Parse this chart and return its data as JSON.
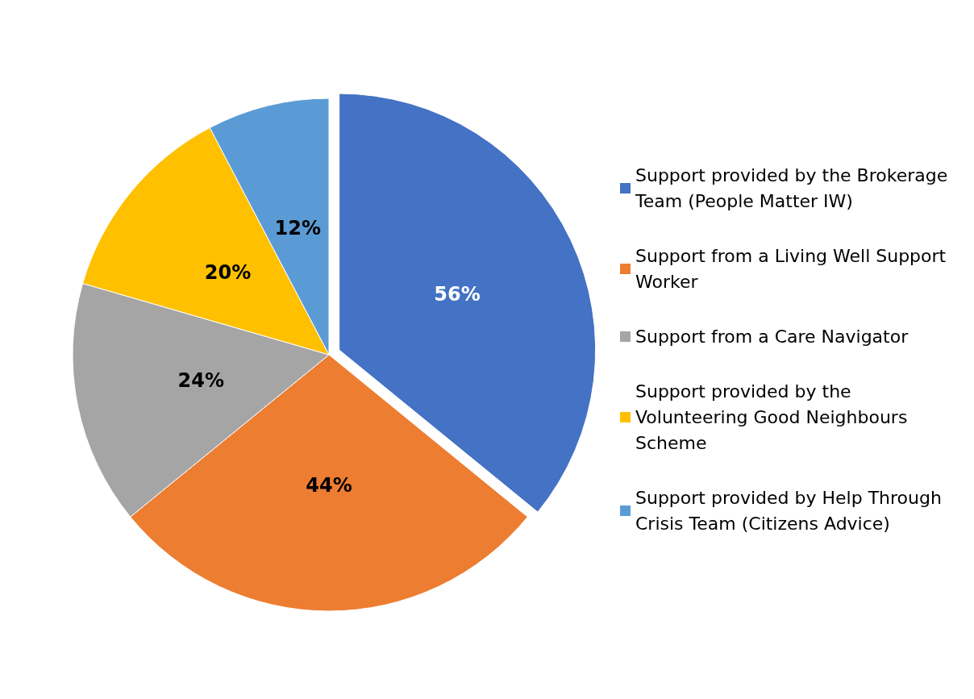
{
  "chart_data": {
    "type": "pie",
    "categories": [
      "Support provided by the Brokerage Team (People Matter IW)",
      "Support from a Living Well Support Worker",
      "Support from a Care Navigator",
      "Support provided by the Volunteering Good Neighbours Scheme",
      "Support provided by Help Through Crisis Team (Citizens Advice)"
    ],
    "values": [
      56,
      44,
      24,
      20,
      12
    ],
    "value_labels": [
      "56%",
      "44%",
      "24%",
      "20%",
      "12%"
    ],
    "colors": [
      "#4472c4",
      "#ed7d31",
      "#a5a5a5",
      "#ffc000",
      "#5b9bd5"
    ],
    "legend": "right"
  }
}
